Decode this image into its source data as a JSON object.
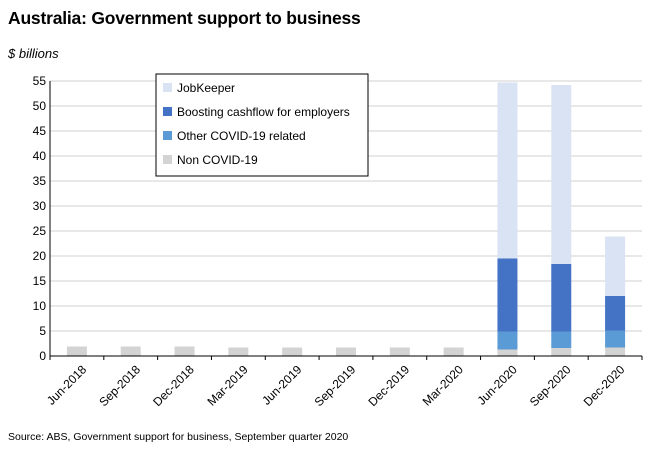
{
  "title": "Australia: Government support to business",
  "unit_label": "$ billions",
  "source": "Source: ABS,  Government support for business, September quarter 2020",
  "chart_data": {
    "type": "bar",
    "stacked": true,
    "categories": [
      "Jun-2018",
      "Sep-2018",
      "Dec-2018",
      "Mar-2019",
      "Jun-2019",
      "Sep-2019",
      "Dec-2019",
      "Mar-2020",
      "Jun-2020",
      "Sep-2020",
      "Dec-2020"
    ],
    "series": [
      {
        "name": "Non COVID-19",
        "color": "#d3d3d3",
        "values": [
          1.9,
          1.9,
          1.9,
          1.7,
          1.7,
          1.7,
          1.7,
          1.7,
          1.3,
          1.6,
          1.7
        ]
      },
      {
        "name": "Other COVID-19 related",
        "color": "#5b9bd5",
        "values": [
          0,
          0,
          0,
          0,
          0,
          0,
          0,
          0,
          3.6,
          3.3,
          3.4
        ]
      },
      {
        "name": "Boosting cashflow for employers",
        "color": "#4472c4",
        "values": [
          0,
          0,
          0,
          0,
          0,
          0,
          0,
          0,
          14.6,
          13.5,
          6.9
        ]
      },
      {
        "name": "JobKeeper",
        "color": "#dae3f3",
        "values": [
          0,
          0,
          0,
          0,
          0,
          0,
          0,
          0,
          35.2,
          35.8,
          11.9
        ]
      }
    ],
    "legend_order": [
      "JobKeeper",
      "Boosting cashflow for employers",
      "Other COVID-19 related",
      "Non COVID-19"
    ],
    "ylim": [
      0,
      55
    ],
    "yticks": [
      0,
      5,
      10,
      15,
      20,
      25,
      30,
      35,
      40,
      45,
      50,
      55
    ],
    "grid": true,
    "legend_position": "top-left"
  }
}
